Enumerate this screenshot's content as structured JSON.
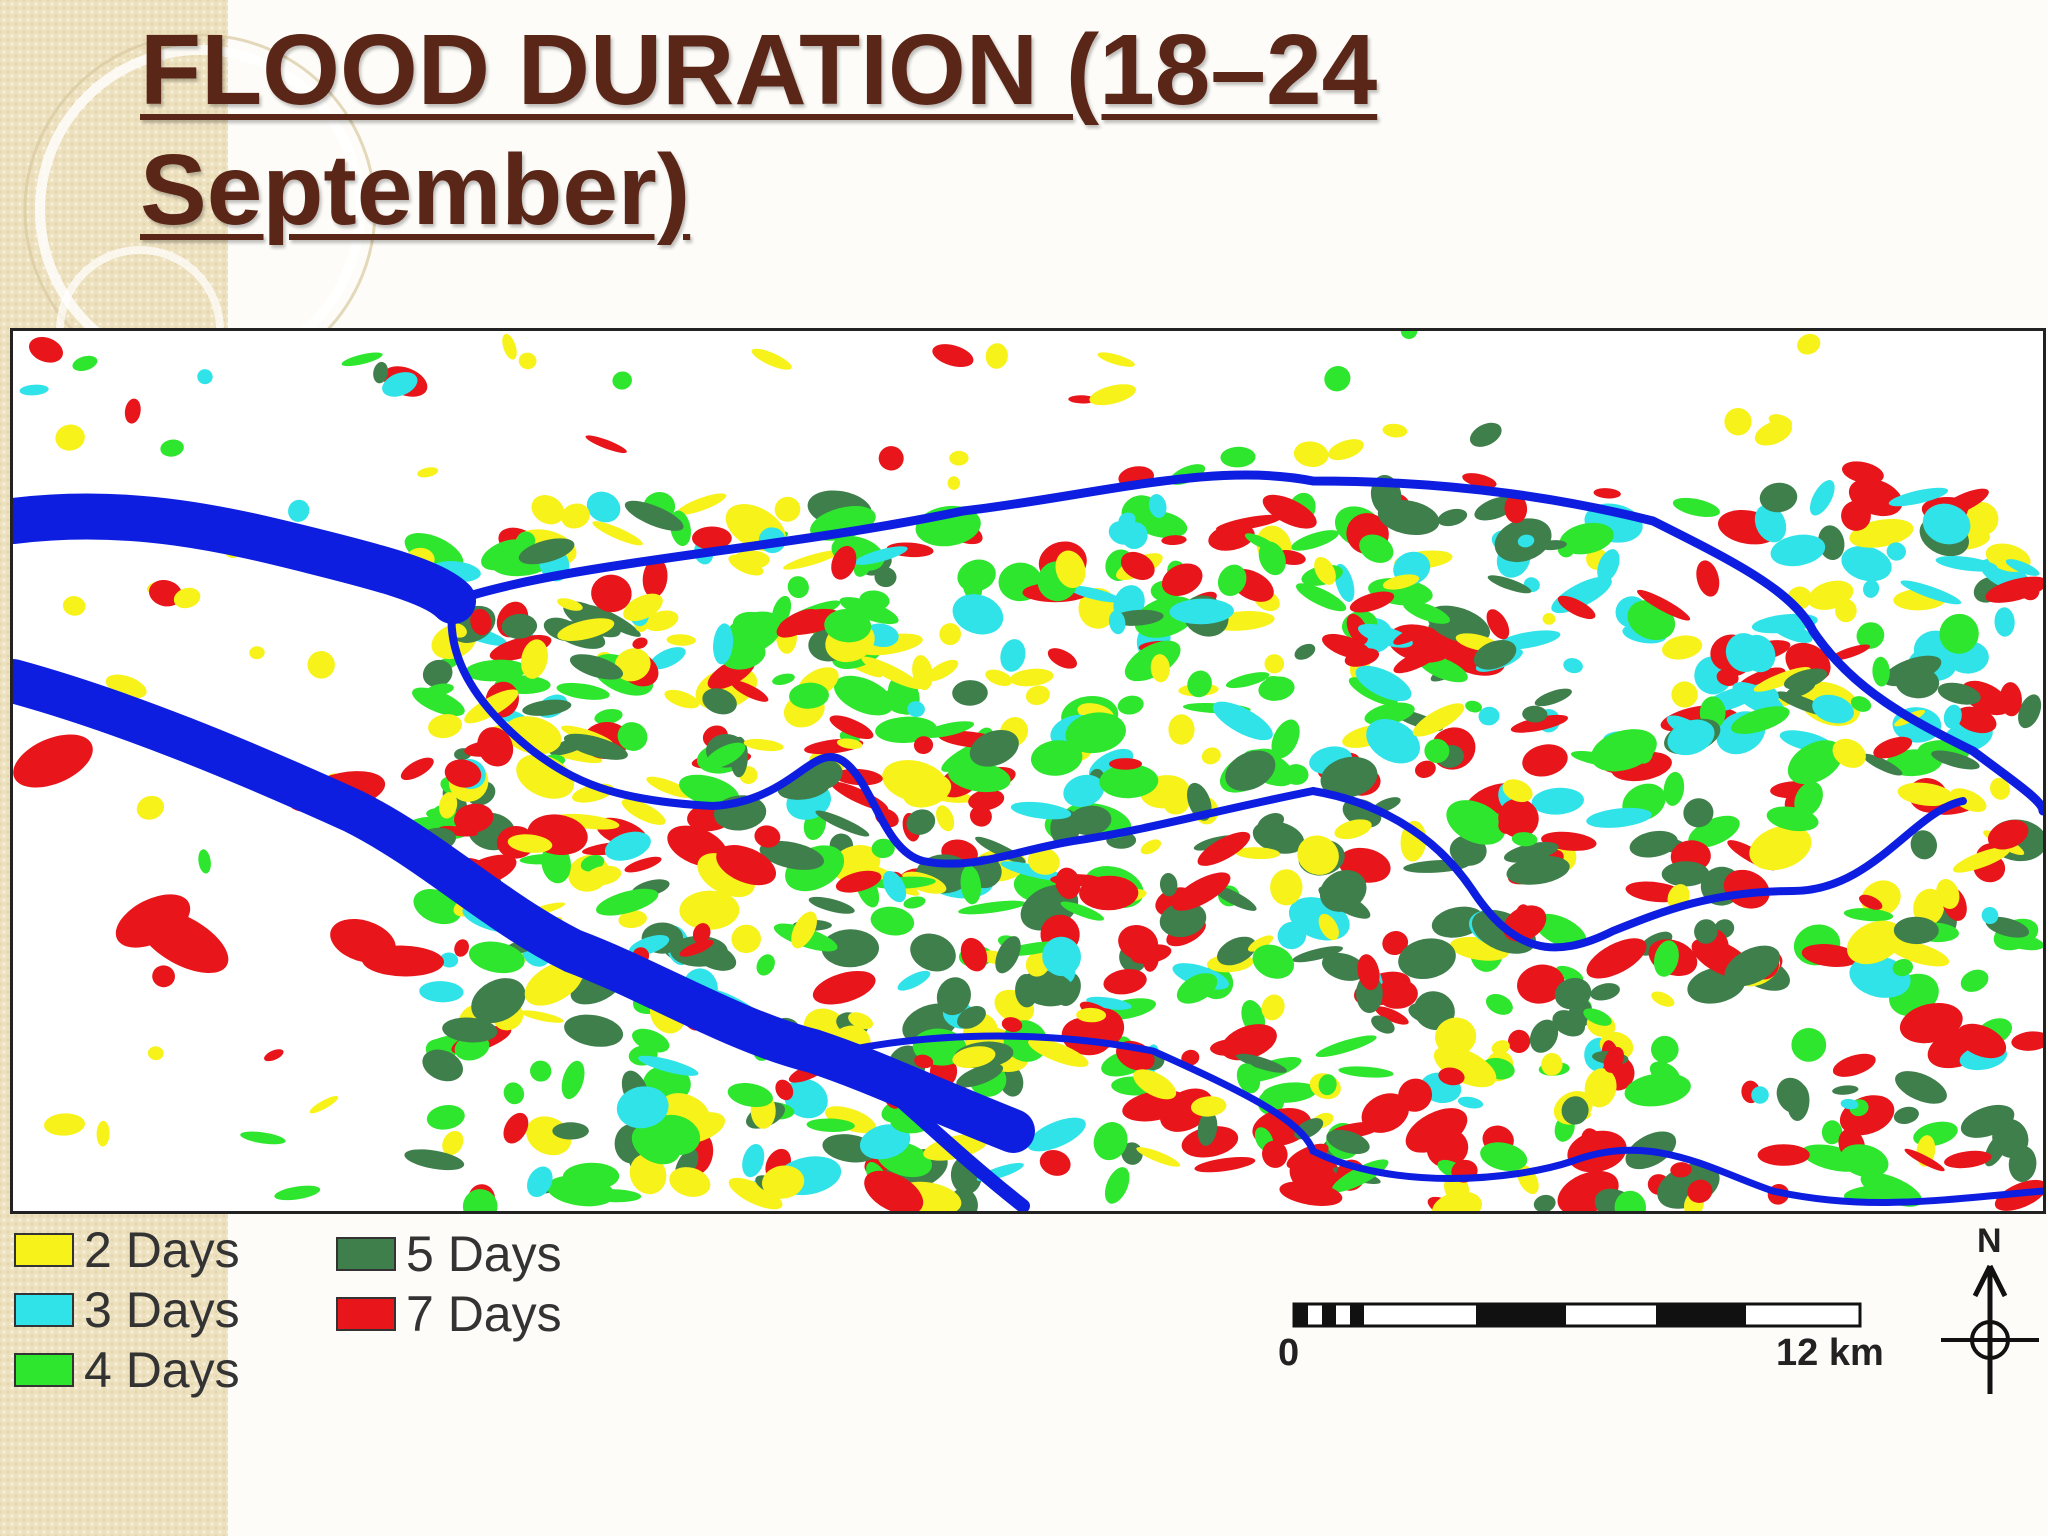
{
  "slide": {
    "title": "FLOOD DURATION (18–24 September)"
  },
  "legend": {
    "items": [
      {
        "label": "2 Days",
        "color": "#f7f21a"
      },
      {
        "label": "3 Days",
        "color": "#2fe3e8"
      },
      {
        "label": "4 Days",
        "color": "#2ee62e"
      },
      {
        "label": "5 Days",
        "color": "#3f7f4c"
      },
      {
        "label": "7 Days",
        "color": "#e8151b"
      }
    ]
  },
  "map": {
    "river_color": "#0d1ee0",
    "scale_bar": {
      "start_label": "0",
      "end_label": "12 km"
    },
    "north_label": "N"
  },
  "colors": {
    "title": "#5a2618",
    "sidebar": "#ede0bd"
  }
}
